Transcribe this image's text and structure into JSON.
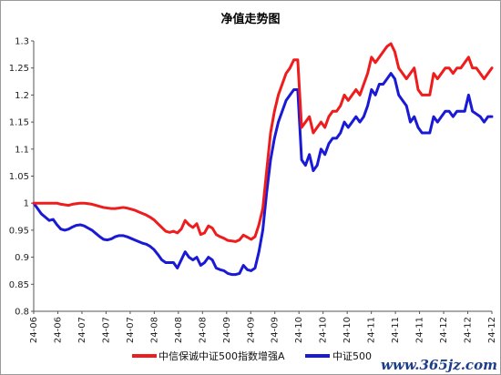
{
  "chart_data": {
    "type": "line",
    "title": "净值走势图",
    "xlabel": "",
    "ylabel": "",
    "ylim": [
      0.8,
      1.3
    ],
    "yticks": [
      "0.8",
      "0.85",
      "0.9",
      "0.95",
      "1",
      "1.05",
      "1.1",
      "1.15",
      "1.2",
      "1.25",
      "1.3"
    ],
    "x_ticks": [
      "24-06",
      "24-06",
      "24-07",
      "24-07",
      "24-07",
      "24-08",
      "24-08",
      "24-08",
      "24-09",
      "24-09",
      "24-09",
      "24-10",
      "24-10",
      "24-10",
      "24-11",
      "24-11",
      "24-11",
      "24-12",
      "24-12",
      "24-12"
    ],
    "grid": false,
    "legend_position": "bottom",
    "series": [
      {
        "name": "中信保诚中证500指数增强A",
        "color": "#ee1c1c",
        "values": [
          1.0,
          1.0,
          1.0,
          1.0,
          1.0,
          1.0,
          1.0,
          0.998,
          0.997,
          0.996,
          0.998,
          0.999,
          1.0,
          1.0,
          0.999,
          0.998,
          0.996,
          0.994,
          0.992,
          0.991,
          0.99,
          0.99,
          0.991,
          0.992,
          0.991,
          0.989,
          0.987,
          0.984,
          0.981,
          0.978,
          0.974,
          0.969,
          0.962,
          0.955,
          0.948,
          0.946,
          0.948,
          0.945,
          0.952,
          0.968,
          0.96,
          0.955,
          0.962,
          0.942,
          0.945,
          0.958,
          0.954,
          0.942,
          0.938,
          0.935,
          0.931,
          0.93,
          0.929,
          0.932,
          0.941,
          0.937,
          0.933,
          0.938,
          0.96,
          0.99,
          1.06,
          1.13,
          1.17,
          1.2,
          1.22,
          1.24,
          1.25,
          1.265,
          1.265,
          1.14,
          1.15,
          1.16,
          1.13,
          1.14,
          1.15,
          1.14,
          1.16,
          1.17,
          1.17,
          1.18,
          1.2,
          1.19,
          1.2,
          1.21,
          1.2,
          1.22,
          1.24,
          1.27,
          1.26,
          1.27,
          1.28,
          1.29,
          1.295,
          1.28,
          1.25,
          1.24,
          1.23,
          1.24,
          1.25,
          1.21,
          1.2,
          1.2,
          1.2,
          1.24,
          1.23,
          1.24,
          1.25,
          1.25,
          1.24,
          1.25,
          1.25,
          1.26,
          1.27,
          1.25,
          1.25,
          1.24,
          1.23,
          1.24,
          1.25
        ]
      },
      {
        "name": "中证500",
        "color": "#1919d6",
        "values": [
          1.0,
          0.99,
          0.98,
          0.974,
          0.968,
          0.97,
          0.96,
          0.952,
          0.95,
          0.952,
          0.956,
          0.959,
          0.96,
          0.958,
          0.954,
          0.95,
          0.944,
          0.938,
          0.933,
          0.932,
          0.934,
          0.938,
          0.94,
          0.94,
          0.938,
          0.935,
          0.932,
          0.929,
          0.926,
          0.924,
          0.92,
          0.914,
          0.905,
          0.895,
          0.89,
          0.89,
          0.89,
          0.88,
          0.895,
          0.91,
          0.9,
          0.895,
          0.9,
          0.885,
          0.89,
          0.9,
          0.895,
          0.88,
          0.877,
          0.875,
          0.87,
          0.868,
          0.868,
          0.87,
          0.885,
          0.877,
          0.875,
          0.88,
          0.91,
          0.95,
          1.02,
          1.08,
          1.12,
          1.15,
          1.17,
          1.19,
          1.2,
          1.21,
          1.21,
          1.08,
          1.07,
          1.09,
          1.06,
          1.07,
          1.1,
          1.09,
          1.11,
          1.12,
          1.12,
          1.13,
          1.15,
          1.14,
          1.15,
          1.16,
          1.15,
          1.16,
          1.18,
          1.21,
          1.2,
          1.22,
          1.22,
          1.23,
          1.24,
          1.23,
          1.2,
          1.19,
          1.18,
          1.15,
          1.16,
          1.14,
          1.13,
          1.13,
          1.13,
          1.16,
          1.15,
          1.16,
          1.17,
          1.17,
          1.16,
          1.17,
          1.17,
          1.17,
          1.2,
          1.17,
          1.165,
          1.16,
          1.15,
          1.16,
          1.16
        ]
      }
    ]
  },
  "watermark": "www.365jz.com"
}
